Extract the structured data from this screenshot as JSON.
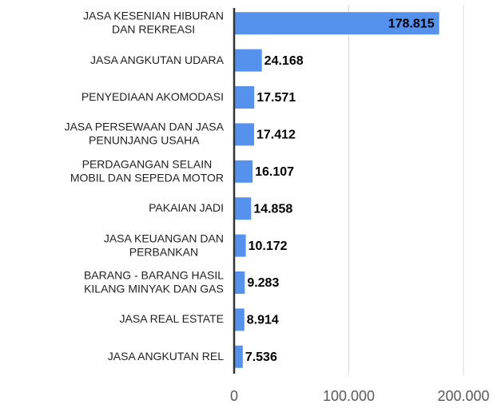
{
  "chart_data": {
    "type": "bar",
    "orientation": "horizontal",
    "categories": [
      "JASA KESENIAN HIBURAN\nDAN REKREASI",
      "JASA ANGKUTAN UDARA",
      "PENYEDIAAN AKOMODASI",
      "JASA PERSEWAAN DAN JASA\nPENUNJANG USAHA",
      "PERDAGANGAN SELAIN\nMOBIL DAN SEPEDA MOTOR",
      "PAKAIAN JADI",
      "JASA KEUANGAN DAN\nPERBANKAN",
      "BARANG - BARANG HASIL\nKILANG MINYAK DAN GAS",
      "JASA REAL ESTATE",
      "JASA ANGKUTAN REL"
    ],
    "values": [
      178815,
      24168,
      17571,
      17412,
      16107,
      14858,
      10172,
      9283,
      8914,
      7536
    ],
    "value_labels": [
      "178.815",
      "24.168",
      "17.571",
      "17.412",
      "16.107",
      "14.858",
      "10.172",
      "9.283",
      "8.914",
      "7.536"
    ],
    "color": "#5592ee",
    "xlim": [
      0,
      200000
    ],
    "xticks": [
      0,
      {
        "value": 100000,
        "label": "100.000"
      },
      {
        "value": 200000,
        "label": "200.000"
      }
    ],
    "grid": true
  }
}
